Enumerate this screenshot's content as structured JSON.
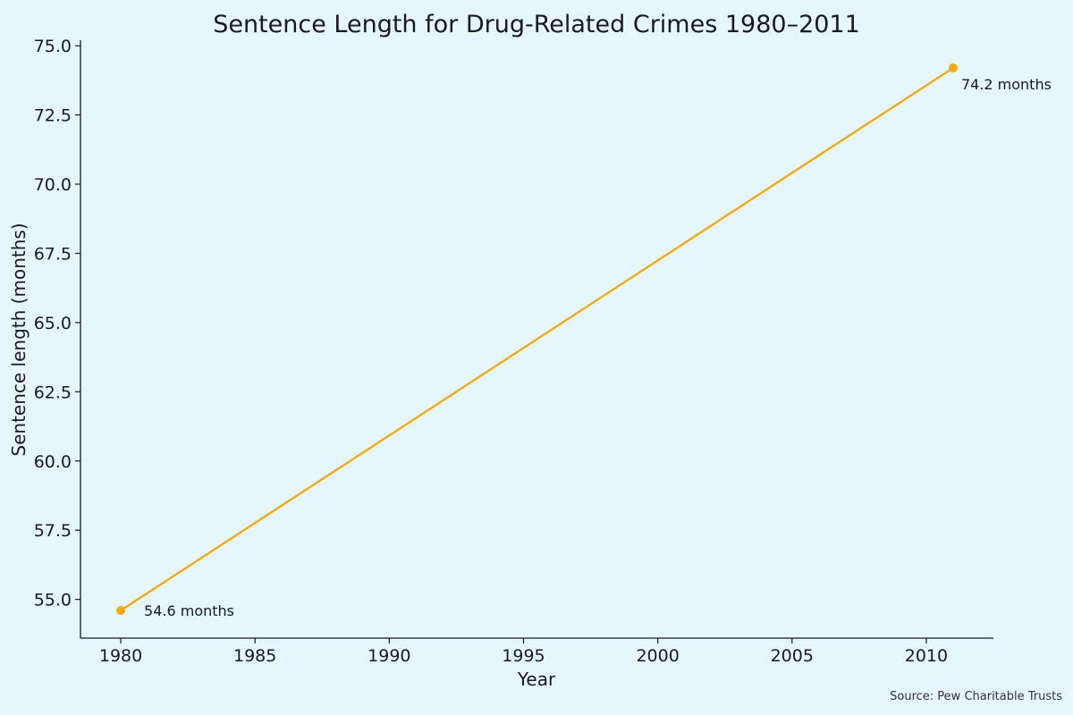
{
  "chart_data": {
    "type": "line",
    "title": "Sentence Length for Drug-Related Crimes 1980–2011",
    "xlabel": "Year",
    "ylabel": "Sentence length (months)",
    "x": [
      1980,
      2011
    ],
    "series": [
      {
        "values": [
          54.6,
          74.2
        ],
        "color": "#f5ab0f"
      }
    ],
    "data_labels": [
      "54.6 months",
      "74.2 months"
    ],
    "xlim": [
      1978.5,
      2012.5
    ],
    "ylim": [
      53.6,
      75.2
    ],
    "x_ticks": [
      1980,
      1985,
      1990,
      1995,
      2000,
      2005,
      2010
    ],
    "x_tick_labels": [
      "1980",
      "1985",
      "1990",
      "1995",
      "2000",
      "2005",
      "2010"
    ],
    "y_ticks": [
      55.0,
      57.5,
      60.0,
      62.5,
      65.0,
      67.5,
      70.0,
      72.5,
      75.0
    ],
    "y_tick_labels": [
      "55.0",
      "57.5",
      "60.0",
      "62.5",
      "65.0",
      "67.5",
      "70.0",
      "72.5",
      "75.0"
    ],
    "grid": false,
    "legend": "none",
    "source": "Source: Pew Charitable Trusts"
  }
}
